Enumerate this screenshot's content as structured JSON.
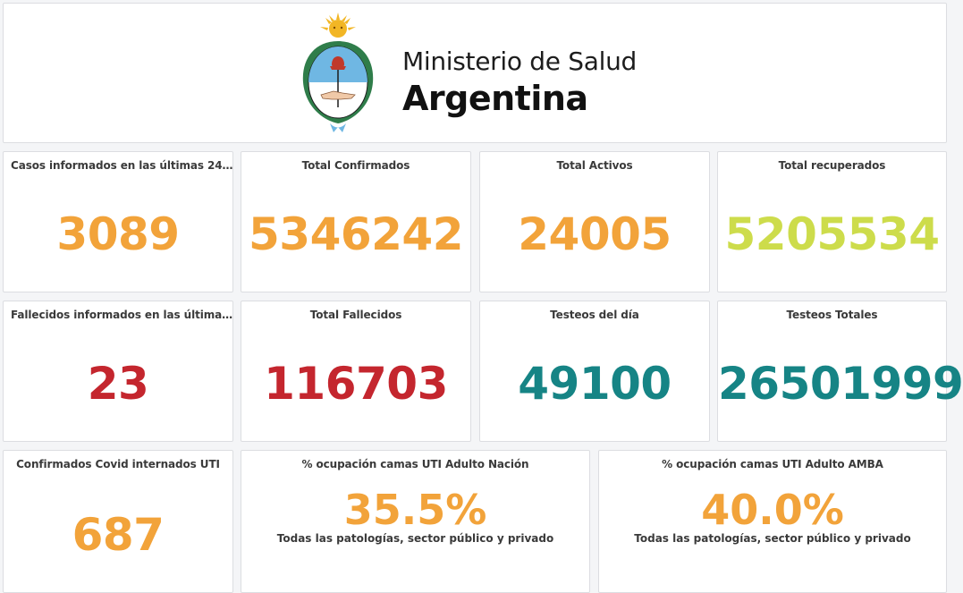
{
  "header": {
    "ministry": "Ministerio de Salud",
    "country": "Argentina"
  },
  "colors": {
    "orange": "#f2a33a",
    "yellow_green": "#cddc4b",
    "red": "#c4262e",
    "teal": "#168485"
  },
  "panels": {
    "casos24": {
      "title": "Casos informados en las últimas 24…",
      "value": "3089"
    },
    "total_confirmados": {
      "title": "Total Confirmados",
      "value": "5346242"
    },
    "total_activos": {
      "title": "Total Activos",
      "value": "24005"
    },
    "total_recuperados": {
      "title": "Total recuperados",
      "value": "5205534"
    },
    "fallecidos24": {
      "title": "Fallecidos informados en las última…",
      "value": "23"
    },
    "total_fallecidos": {
      "title": "Total Fallecidos",
      "value": "116703"
    },
    "testeos_dia": {
      "title": "Testeos del día",
      "value": "49100"
    },
    "testeos_totales": {
      "title": "Testeos Totales",
      "value": "26501999"
    },
    "internados_uti": {
      "title": "Confirmados Covid internados UTI",
      "value": "687"
    },
    "uti_nacion": {
      "title": "% ocupación camas UTI Adulto Nación",
      "value": "35.5%",
      "subtitle": "Todas las patologías, sector público y privado"
    },
    "uti_amba": {
      "title": "% ocupación camas UTI Adulto AMBA",
      "value": "40.0%",
      "subtitle": "Todas las patologías, sector público y privado"
    }
  }
}
